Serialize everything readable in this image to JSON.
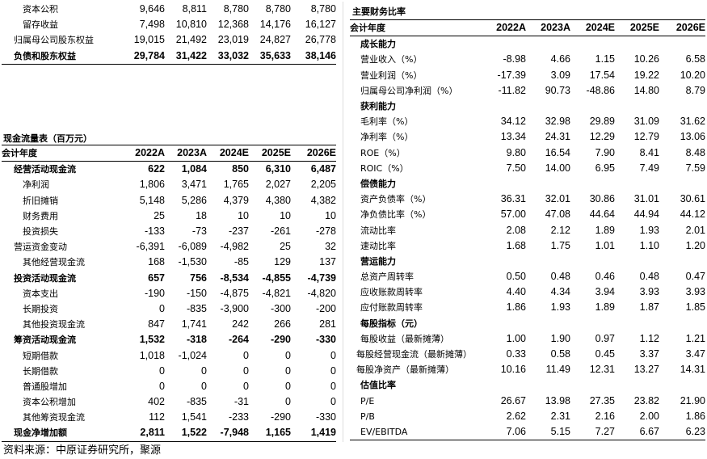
{
  "top_rows": [
    {
      "label": "资本公积",
      "bold": false,
      "indent": "i2",
      "values": [
        "9,646",
        "8,811",
        "8,780",
        "8,780",
        "8,780"
      ]
    },
    {
      "label": "留存收益",
      "bold": false,
      "indent": "i2",
      "values": [
        "7,498",
        "10,810",
        "12,368",
        "14,176",
        "16,127"
      ]
    },
    {
      "label": "归属母公司股东权益",
      "bold": false,
      "indent": "i1",
      "values": [
        "19,015",
        "21,492",
        "23,019",
        "24,827",
        "26,778"
      ]
    },
    {
      "label": "负债和股东权益",
      "bold": true,
      "indent": "i1",
      "values": [
        "29,784",
        "31,422",
        "33,032",
        "35,633",
        "38,146"
      ]
    }
  ],
  "cashflow": {
    "title": "现金流量表（百万元）",
    "header": {
      "label": "会计年度",
      "years": [
        "2022A",
        "2023A",
        "2024E",
        "2025E",
        "2026E"
      ]
    },
    "rows": [
      {
        "label": "经营活动现金流",
        "bold": true,
        "indent": "i1",
        "values": [
          "622",
          "1,084",
          "850",
          "6,310",
          "6,487"
        ]
      },
      {
        "label": "净利润",
        "bold": false,
        "indent": "i2",
        "values": [
          "1,806",
          "3,471",
          "1,765",
          "2,027",
          "2,205"
        ]
      },
      {
        "label": "折旧摊销",
        "bold": false,
        "indent": "i2",
        "values": [
          "5,148",
          "5,286",
          "4,379",
          "4,380",
          "4,382"
        ]
      },
      {
        "label": "财务费用",
        "bold": false,
        "indent": "i2",
        "values": [
          "25",
          "18",
          "10",
          "10",
          "10"
        ]
      },
      {
        "label": "投资损失",
        "bold": false,
        "indent": "i2",
        "values": [
          "-133",
          "-73",
          "-237",
          "-261",
          "-278"
        ]
      },
      {
        "label": "营运资金变动",
        "bold": false,
        "indent": "i1",
        "values": [
          "-6,391",
          "-6,089",
          "-4,982",
          "25",
          "32"
        ]
      },
      {
        "label": "其他经营现金流",
        "bold": false,
        "indent": "i2",
        "values": [
          "168",
          "-1,530",
          "-85",
          "129",
          "137"
        ]
      },
      {
        "label": "投资活动现金流",
        "bold": true,
        "indent": "i1",
        "values": [
          "657",
          "756",
          "-8,534",
          "-4,855",
          "-4,739"
        ]
      },
      {
        "label": "资本支出",
        "bold": false,
        "indent": "i2",
        "values": [
          "-190",
          "-150",
          "-4,875",
          "-4,821",
          "-4,820"
        ]
      },
      {
        "label": "长期投资",
        "bold": false,
        "indent": "i2",
        "values": [
          "0",
          "-835",
          "-3,900",
          "-300",
          "-200"
        ]
      },
      {
        "label": "其他投资现金流",
        "bold": false,
        "indent": "i2",
        "values": [
          "847",
          "1,741",
          "242",
          "266",
          "281"
        ]
      },
      {
        "label": "筹资活动现金流",
        "bold": true,
        "indent": "i1",
        "values": [
          "1,532",
          "-318",
          "-264",
          "-290",
          "-330"
        ]
      },
      {
        "label": "短期借款",
        "bold": false,
        "indent": "i2",
        "values": [
          "1,018",
          "-1,024",
          "0",
          "0",
          "0"
        ]
      },
      {
        "label": "长期借款",
        "bold": false,
        "indent": "i2",
        "values": [
          "0",
          "0",
          "0",
          "0",
          "0"
        ]
      },
      {
        "label": "普通股增加",
        "bold": false,
        "indent": "i2",
        "values": [
          "0",
          "0",
          "0",
          "0",
          "0"
        ]
      },
      {
        "label": "资本公积增加",
        "bold": false,
        "indent": "i2",
        "values": [
          "402",
          "-835",
          "-31",
          "0",
          "0"
        ]
      },
      {
        "label": "其他筹资现金流",
        "bold": false,
        "indent": "i2",
        "values": [
          "112",
          "1,541",
          "-233",
          "-290",
          "-330"
        ]
      },
      {
        "label": "现金净增加额",
        "bold": true,
        "indent": "i1",
        "values": [
          "2,811",
          "1,522",
          "-7,948",
          "1,165",
          "1,419"
        ]
      }
    ]
  },
  "ratios": {
    "title": "主要财务比率",
    "header": {
      "label": "会计年度",
      "years": [
        "2022A",
        "2023A",
        "2024E",
        "2025E",
        "2026E"
      ]
    },
    "rows": [
      {
        "label": "成长能力",
        "bold": true,
        "indent": "i4",
        "values": [
          "",
          "",
          "",
          "",
          ""
        ]
      },
      {
        "label": "营业收入（%）",
        "bold": false,
        "indent": "i4",
        "values": [
          "-8.98",
          "4.66",
          "1.15",
          "10.26",
          "6.58"
        ]
      },
      {
        "label": "营业利润（%）",
        "bold": false,
        "indent": "i4",
        "values": [
          "-17.39",
          "3.09",
          "17.54",
          "19.22",
          "10.20"
        ]
      },
      {
        "label": "归属母公司净利润（%）",
        "bold": false,
        "indent": "i4",
        "values": [
          "-11.82",
          "90.73",
          "-48.86",
          "14.80",
          "8.79"
        ]
      },
      {
        "label": "获利能力",
        "bold": true,
        "indent": "i4",
        "values": [
          "",
          "",
          "",
          "",
          ""
        ]
      },
      {
        "label": "毛利率（%）",
        "bold": false,
        "indent": "i4",
        "values": [
          "34.12",
          "32.98",
          "29.89",
          "31.09",
          "31.62"
        ]
      },
      {
        "label": "净利率（%）",
        "bold": false,
        "indent": "i4",
        "values": [
          "13.34",
          "24.31",
          "12.29",
          "12.79",
          "13.06"
        ]
      },
      {
        "label": "ROE（%）",
        "bold": false,
        "indent": "i4",
        "values": [
          "9.80",
          "16.54",
          "7.90",
          "8.41",
          "8.48"
        ]
      },
      {
        "label": "ROIC（%）",
        "bold": false,
        "indent": "i4",
        "values": [
          "7.50",
          "14.00",
          "6.95",
          "7.49",
          "7.59"
        ]
      },
      {
        "label": "偿债能力",
        "bold": true,
        "indent": "i4",
        "values": [
          "",
          "",
          "",
          "",
          ""
        ]
      },
      {
        "label": "资产负债率（%）",
        "bold": false,
        "indent": "i4",
        "values": [
          "36.31",
          "32.01",
          "30.86",
          "31.01",
          "30.61"
        ]
      },
      {
        "label": "净负债比率（%）",
        "bold": false,
        "indent": "i4",
        "values": [
          "57.00",
          "47.08",
          "44.64",
          "44.94",
          "44.12"
        ]
      },
      {
        "label": "流动比率",
        "bold": false,
        "indent": "i4",
        "values": [
          "2.08",
          "2.12",
          "1.89",
          "1.93",
          "2.01"
        ]
      },
      {
        "label": "速动比率",
        "bold": false,
        "indent": "i4",
        "values": [
          "1.68",
          "1.75",
          "1.01",
          "1.10",
          "1.20"
        ]
      },
      {
        "label": "营运能力",
        "bold": true,
        "indent": "i4",
        "values": [
          "",
          "",
          "",
          "",
          ""
        ]
      },
      {
        "label": "总资产周转率",
        "bold": false,
        "indent": "i4",
        "values": [
          "0.50",
          "0.48",
          "0.46",
          "0.48",
          "0.47"
        ]
      },
      {
        "label": "应收账款周转率",
        "bold": false,
        "indent": "i4",
        "values": [
          "4.40",
          "4.34",
          "3.94",
          "3.93",
          "3.93"
        ]
      },
      {
        "label": "应付账款周转率",
        "bold": false,
        "indent": "i4",
        "values": [
          "1.86",
          "1.93",
          "1.89",
          "1.87",
          "1.85"
        ]
      },
      {
        "label": "每股指标（元）",
        "bold": true,
        "indent": "i4",
        "values": [
          "",
          "",
          "",
          "",
          ""
        ]
      },
      {
        "label": "每股收益（最新摊薄）",
        "bold": false,
        "indent": "i4",
        "values": [
          "1.00",
          "1.90",
          "0.97",
          "1.12",
          "1.21"
        ]
      },
      {
        "label": "每股经营现金流（最新摊薄）",
        "bold": false,
        "indent": "i3",
        "values": [
          "0.33",
          "0.58",
          "0.45",
          "3.37",
          "3.47"
        ]
      },
      {
        "label": "每股净资产（最新摊薄）",
        "bold": false,
        "indent": "i3",
        "values": [
          "10.16",
          "11.49",
          "12.31",
          "13.27",
          "14.31"
        ]
      },
      {
        "label": "估值比率",
        "bold": true,
        "indent": "i4",
        "values": [
          "",
          "",
          "",
          "",
          ""
        ]
      },
      {
        "label": "P/E",
        "bold": false,
        "indent": "i4",
        "values": [
          "26.67",
          "13.98",
          "27.35",
          "23.82",
          "21.90"
        ]
      },
      {
        "label": "P/B",
        "bold": false,
        "indent": "i4",
        "values": [
          "2.62",
          "2.31",
          "2.16",
          "2.00",
          "1.86"
        ]
      },
      {
        "label": "EV/EBITDA",
        "bold": false,
        "indent": "i4",
        "values": [
          "7.06",
          "5.15",
          "7.27",
          "6.67",
          "6.23"
        ]
      }
    ]
  },
  "footer": "资料来源：中原证券研究所，聚源"
}
